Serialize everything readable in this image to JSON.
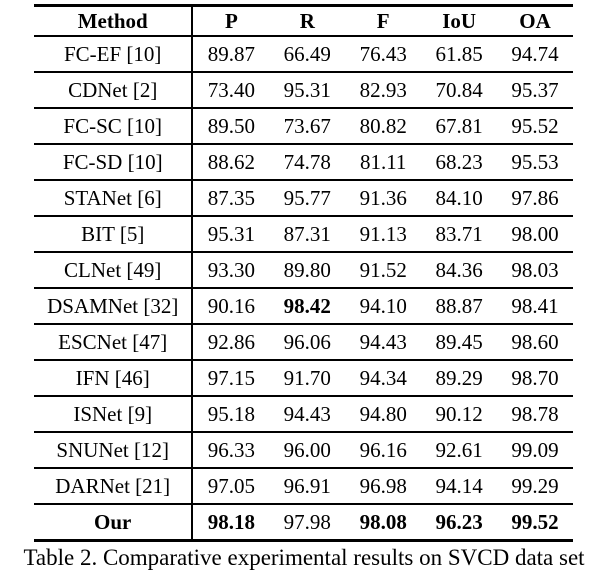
{
  "caption": "Table 2. Comparative experimental results on SVCD data set",
  "table": {
    "columns": [
      "Method",
      "P",
      "R",
      "F",
      "IoU",
      "OA"
    ],
    "rows": [
      {
        "method": "FC-EF [10]",
        "values": [
          "89.87",
          "66.49",
          "76.43",
          "61.85",
          "94.74"
        ]
      },
      {
        "method": "CDNet [2]",
        "values": [
          "73.40",
          "95.31",
          "82.93",
          "70.84",
          "95.37"
        ]
      },
      {
        "method": "FC-SC [10]",
        "values": [
          "89.50",
          "73.67",
          "80.82",
          "67.81",
          "95.52"
        ]
      },
      {
        "method": "FC-SD [10]",
        "values": [
          "88.62",
          "74.78",
          "81.11",
          "68.23",
          "95.53"
        ]
      },
      {
        "method": "STANet [6]",
        "values": [
          "87.35",
          "95.77",
          "91.36",
          "84.10",
          "97.86"
        ]
      },
      {
        "method": "BIT [5]",
        "values": [
          "95.31",
          "87.31",
          "91.13",
          "83.71",
          "98.00"
        ]
      },
      {
        "method": "CLNet [49]",
        "values": [
          "93.30",
          "89.80",
          "91.52",
          "84.36",
          "98.03"
        ]
      },
      {
        "method": "DSAMNet [32]",
        "values": [
          "90.16",
          "98.42",
          "94.10",
          "88.87",
          "98.41"
        ]
      },
      {
        "method": "ESCNet [47]",
        "values": [
          "92.86",
          "96.06",
          "94.43",
          "89.45",
          "98.60"
        ]
      },
      {
        "method": "IFN [46]",
        "values": [
          "97.15",
          "91.70",
          "94.34",
          "89.29",
          "98.70"
        ]
      },
      {
        "method": "ISNet [9]",
        "values": [
          "95.18",
          "94.43",
          "94.80",
          "90.12",
          "98.78"
        ]
      },
      {
        "method": "SNUNet [12]",
        "values": [
          "96.33",
          "96.00",
          "96.16",
          "92.61",
          "99.09"
        ]
      },
      {
        "method": "DARNet [21]",
        "values": [
          "97.05",
          "96.91",
          "96.98",
          "94.14",
          "99.29"
        ]
      },
      {
        "method": "Our",
        "values": [
          "98.18",
          "97.98",
          "98.08",
          "96.23",
          "99.52"
        ]
      }
    ]
  }
}
